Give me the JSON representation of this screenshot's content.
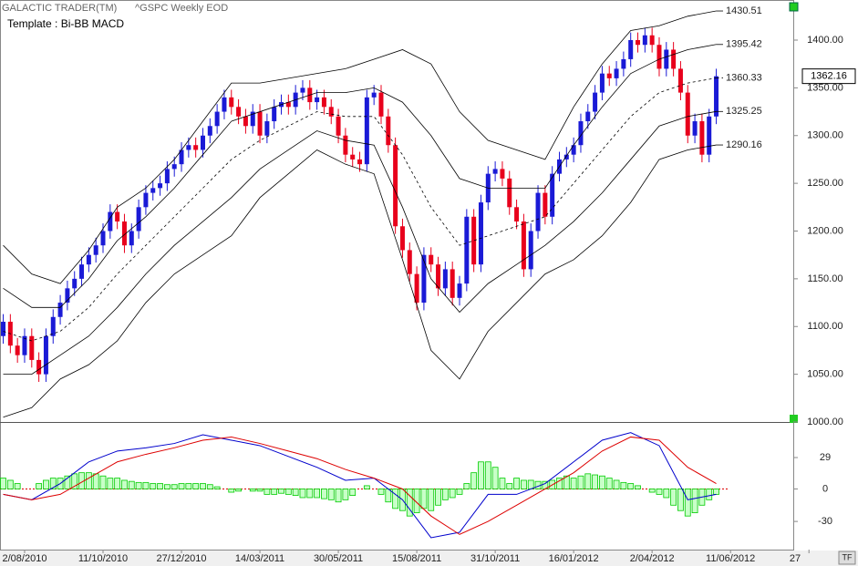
{
  "header": {
    "app": "GALACTIC TRADER(TM)",
    "symbol": "^GSPC Weekly EOD",
    "template": "Template : Bi-BB MACD",
    "tf": "TF"
  },
  "chart_data": [
    {
      "type": "candlestick",
      "xlim": [
        -0.45,
        110.8
      ],
      "ylim": [
        1000,
        1442
      ],
      "yticks": [
        {
          "value": 1000,
          "label": "1000.00"
        },
        {
          "value": 1050,
          "label": "1050.00"
        },
        {
          "value": 1100,
          "label": "1100.00"
        },
        {
          "value": 1150,
          "label": "1150.00"
        },
        {
          "value": 1200,
          "label": "1200.00"
        },
        {
          "value": 1250,
          "label": "1250.00"
        },
        {
          "value": 1300,
          "label": "1300.00"
        },
        {
          "value": 1350,
          "label": "1350.00"
        },
        {
          "value": 1400,
          "label": "1400.00"
        }
      ],
      "up_color": "#1a1ad6",
      "down_color": "#e8001c",
      "open": [
        1090,
        1105,
        1080,
        1070,
        1090,
        1065,
        1050,
        1090,
        1110,
        1125,
        1140,
        1150,
        1165,
        1175,
        1185,
        1200,
        1220,
        1210,
        1185,
        1200,
        1225,
        1240,
        1245,
        1250,
        1265,
        1270,
        1285,
        1290,
        1285,
        1300,
        1310,
        1325,
        1340,
        1330,
        1320,
        1310,
        1325,
        1300,
        1315,
        1330,
        1335,
        1330,
        1345,
        1350,
        1335,
        1340,
        1330,
        1320,
        1300,
        1280,
        1275,
        1270,
        1340,
        1345,
        1320,
        1290,
        1205,
        1180,
        1155,
        1125,
        1175,
        1165,
        1140,
        1160,
        1130,
        1145,
        1215,
        1165,
        1230,
        1260,
        1265,
        1255,
        1225,
        1210,
        1160,
        1200,
        1240,
        1215,
        1260,
        1275,
        1280,
        1290,
        1315,
        1325,
        1345,
        1365,
        1360,
        1370,
        1380,
        1400,
        1395,
        1405,
        1395,
        1370,
        1390,
        1370,
        1345,
        1300,
        1315,
        1280,
        1320
      ],
      "high": [
        1113,
        1113,
        1088,
        1098,
        1098,
        1073,
        1098,
        1118,
        1133,
        1148,
        1158,
        1173,
        1183,
        1193,
        1208,
        1228,
        1228,
        1218,
        1208,
        1233,
        1248,
        1253,
        1258,
        1273,
        1278,
        1293,
        1298,
        1298,
        1308,
        1318,
        1333,
        1348,
        1348,
        1338,
        1328,
        1333,
        1333,
        1323,
        1338,
        1343,
        1343,
        1353,
        1358,
        1358,
        1348,
        1348,
        1338,
        1328,
        1308,
        1288,
        1283,
        1348,
        1353,
        1353,
        1328,
        1298,
        1213,
        1188,
        1163,
        1183,
        1183,
        1173,
        1168,
        1168,
        1153,
        1223,
        1223,
        1238,
        1268,
        1273,
        1273,
        1263,
        1233,
        1218,
        1208,
        1248,
        1248,
        1268,
        1283,
        1288,
        1298,
        1323,
        1333,
        1353,
        1373,
        1373,
        1378,
        1388,
        1408,
        1408,
        1413,
        1413,
        1403,
        1398,
        1398,
        1378,
        1353,
        1323,
        1323,
        1328,
        1370
      ],
      "low": [
        1082,
        1072,
        1062,
        1062,
        1057,
        1042,
        1042,
        1082,
        1102,
        1117,
        1132,
        1142,
        1157,
        1167,
        1177,
        1192,
        1202,
        1177,
        1177,
        1192,
        1217,
        1232,
        1237,
        1242,
        1257,
        1262,
        1277,
        1277,
        1277,
        1292,
        1302,
        1317,
        1322,
        1312,
        1302,
        1302,
        1292,
        1292,
        1307,
        1322,
        1322,
        1322,
        1337,
        1327,
        1327,
        1322,
        1312,
        1292,
        1272,
        1267,
        1262,
        1262,
        1332,
        1312,
        1282,
        1197,
        1172,
        1147,
        1117,
        1117,
        1157,
        1132,
        1132,
        1122,
        1122,
        1137,
        1157,
        1157,
        1222,
        1252,
        1247,
        1217,
        1202,
        1152,
        1152,
        1192,
        1207,
        1207,
        1252,
        1267,
        1272,
        1282,
        1307,
        1317,
        1337,
        1352,
        1352,
        1362,
        1372,
        1387,
        1387,
        1387,
        1362,
        1362,
        1362,
        1337,
        1292,
        1292,
        1272,
        1272,
        1312
      ],
      "close": [
        1105,
        1080,
        1070,
        1090,
        1065,
        1050,
        1090,
        1110,
        1125,
        1140,
        1150,
        1165,
        1175,
        1185,
        1200,
        1220,
        1210,
        1185,
        1200,
        1225,
        1240,
        1245,
        1250,
        1265,
        1270,
        1285,
        1290,
        1285,
        1300,
        1310,
        1325,
        1340,
        1330,
        1320,
        1310,
        1325,
        1300,
        1315,
        1330,
        1335,
        1330,
        1345,
        1350,
        1335,
        1340,
        1330,
        1320,
        1300,
        1280,
        1275,
        1270,
        1340,
        1345,
        1320,
        1290,
        1205,
        1180,
        1155,
        1125,
        1175,
        1165,
        1140,
        1160,
        1130,
        1145,
        1215,
        1165,
        1230,
        1260,
        1265,
        1255,
        1225,
        1210,
        1160,
        1200,
        1240,
        1215,
        1260,
        1275,
        1280,
        1290,
        1315,
        1325,
        1345,
        1365,
        1360,
        1370,
        1380,
        1400,
        1395,
        1405,
        1395,
        1370,
        1390,
        1370,
        1345,
        1300,
        1315,
        1280,
        1320,
        1362.16
      ],
      "series": [
        {
          "color": "#000000",
          "x": [
            0,
            4,
            8,
            12,
            16,
            20,
            24,
            28,
            32,
            36,
            40,
            44,
            48,
            52,
            56,
            60,
            64,
            68,
            72,
            76,
            80,
            84,
            88,
            92,
            96,
            100
          ],
          "values": [
            1185,
            1155,
            1145,
            1180,
            1225,
            1245,
            1275,
            1315,
            1355,
            1355,
            1360,
            1365,
            1370,
            1380,
            1390,
            1375,
            1325,
            1295,
            1285,
            1275,
            1330,
            1375,
            1410,
            1415,
            1425,
            1430.51
          ]
        },
        {
          "color": "#000000",
          "x": [
            0,
            4,
            8,
            12,
            16,
            20,
            24,
            28,
            32,
            36,
            40,
            44,
            48,
            52,
            56,
            60,
            64,
            68,
            72,
            76,
            80,
            84,
            88,
            92,
            96,
            100
          ],
          "values": [
            1140,
            1120,
            1120,
            1150,
            1190,
            1215,
            1245,
            1280,
            1315,
            1325,
            1335,
            1345,
            1345,
            1350,
            1335,
            1300,
            1255,
            1245,
            1245,
            1245,
            1290,
            1330,
            1365,
            1380,
            1390,
            1395.42
          ]
        },
        {
          "color": "#000000",
          "dashed": true,
          "x": [
            0,
            4,
            8,
            12,
            16,
            20,
            24,
            28,
            32,
            36,
            40,
            44,
            48,
            52,
            56,
            60,
            64,
            68,
            72,
            76,
            80,
            84,
            88,
            92,
            96,
            100
          ],
          "values": [
            1095,
            1085,
            1095,
            1120,
            1155,
            1185,
            1215,
            1245,
            1275,
            1295,
            1310,
            1325,
            1320,
            1320,
            1280,
            1225,
            1185,
            1195,
            1205,
            1215,
            1250,
            1285,
            1320,
            1345,
            1355,
            1360.33
          ]
        },
        {
          "color": "#000000",
          "x": [
            0,
            4,
            8,
            12,
            16,
            20,
            24,
            28,
            32,
            36,
            40,
            44,
            48,
            52,
            56,
            60,
            64,
            68,
            72,
            76,
            80,
            84,
            88,
            92,
            96,
            100
          ],
          "values": [
            1050,
            1050,
            1070,
            1090,
            1120,
            1155,
            1185,
            1210,
            1235,
            1265,
            1285,
            1305,
            1295,
            1290,
            1225,
            1150,
            1115,
            1145,
            1165,
            1185,
            1210,
            1240,
            1275,
            1310,
            1320,
            1325.25
          ]
        },
        {
          "color": "#000000",
          "x": [
            0,
            4,
            8,
            12,
            16,
            20,
            24,
            28,
            32,
            36,
            40,
            44,
            48,
            52,
            56,
            60,
            64,
            68,
            72,
            76,
            80,
            84,
            88,
            92,
            96,
            100
          ],
          "values": [
            1005,
            1015,
            1045,
            1060,
            1085,
            1125,
            1155,
            1175,
            1195,
            1235,
            1260,
            1285,
            1270,
            1260,
            1170,
            1075,
            1045,
            1095,
            1125,
            1155,
            1170,
            1195,
            1230,
            1275,
            1285,
            1290.16
          ]
        }
      ]
    },
    {
      "type": "macd",
      "xlim": [
        -0.45,
        110.8
      ],
      "ylim": [
        -56,
        61
      ],
      "yticks": [
        29,
        0,
        -30
      ],
      "xticks": [
        {
          "value": 3,
          "label": "2/08/2010"
        },
        {
          "value": 14,
          "label": "11/10/2010"
        },
        {
          "value": 25,
          "label": "27/12/2010"
        },
        {
          "value": 36,
          "label": "14/03/2011"
        },
        {
          "value": 47,
          "label": "30/05/2011"
        },
        {
          "value": 58,
          "label": "15/08/2011"
        },
        {
          "value": 69,
          "label": "31/10/2011"
        },
        {
          "value": 80,
          "label": "16/01/2012"
        },
        {
          "value": 91,
          "label": "2/04/2012"
        },
        {
          "value": 102,
          "label": "11/06/2012"
        },
        {
          "value": 113,
          "label": "27"
        }
      ],
      "histogram": {
        "color": "#00cc00",
        "values": [
          10,
          8,
          5,
          0,
          0,
          5,
          8,
          10,
          10,
          12,
          14,
          15,
          15,
          14,
          12,
          10,
          10,
          8,
          7,
          6,
          6,
          5,
          5,
          4,
          4,
          5,
          5,
          5,
          5,
          4,
          2,
          0,
          -3,
          -2,
          0,
          -2,
          -2,
          -5,
          -5,
          -4,
          -5,
          -6,
          -8,
          -8,
          -8,
          -9,
          -10,
          -12,
          -10,
          -6,
          0,
          3,
          0,
          -5,
          -12,
          -18,
          -20,
          -25,
          -22,
          -18,
          -20,
          -15,
          -10,
          -8,
          -5,
          5,
          15,
          25,
          25,
          20,
          10,
          5,
          10,
          8,
          8,
          7,
          7,
          8,
          10,
          12,
          10,
          12,
          14,
          13,
          12,
          10,
          8,
          6,
          5,
          3,
          0,
          -3,
          -5,
          -8,
          -15,
          -20,
          -25,
          -22,
          -15,
          -10,
          -5
        ]
      },
      "series": [
        {
          "color": "#0000cc",
          "x": [
            0,
            4,
            8,
            12,
            16,
            20,
            24,
            28,
            32,
            36,
            40,
            44,
            48,
            52,
            56,
            60,
            64,
            68,
            72,
            76,
            80,
            84,
            88,
            92,
            96,
            100
          ],
          "values": [
            -5,
            -10,
            5,
            25,
            35,
            38,
            42,
            50,
            45,
            40,
            30,
            20,
            8,
            10,
            -10,
            -45,
            -40,
            -5,
            -5,
            5,
            25,
            45,
            52,
            40,
            -10,
            -5
          ]
        },
        {
          "color": "#dd0000",
          "x": [
            0,
            4,
            8,
            12,
            16,
            20,
            24,
            28,
            32,
            36,
            40,
            44,
            48,
            52,
            56,
            60,
            64,
            68,
            72,
            76,
            80,
            84,
            88,
            92,
            96,
            100
          ],
          "values": [
            -5,
            -10,
            -5,
            10,
            25,
            32,
            38,
            45,
            48,
            42,
            35,
            28,
            18,
            10,
            0,
            -25,
            -42,
            -30,
            -15,
            0,
            15,
            35,
            48,
            45,
            20,
            5
          ]
        }
      ]
    }
  ]
}
